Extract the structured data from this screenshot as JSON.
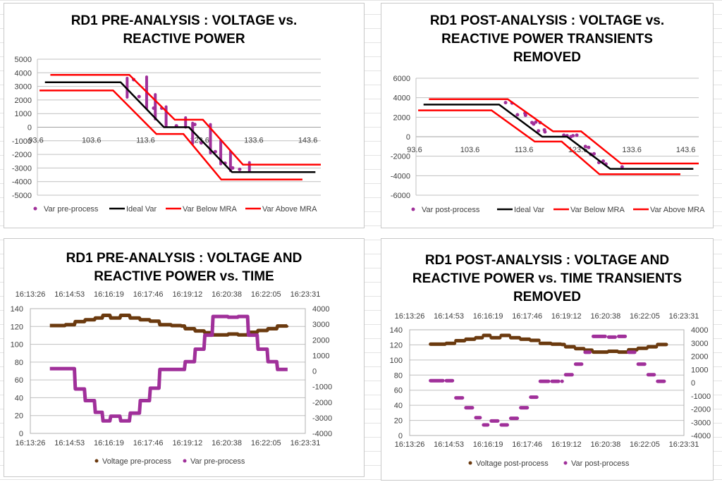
{
  "chart_data": [
    {
      "id": "tl",
      "type": "scatter",
      "title": [
        "RD1 PRE-ANALYSIS : VOLTAGE vs.",
        "REACTIVE POWER"
      ],
      "xlim": [
        93.6,
        146
      ],
      "ylim": [
        -5000,
        5000
      ],
      "xticks": [
        "93.6",
        "103.6",
        "113.6",
        "123.6",
        "133.6",
        "143.6"
      ],
      "xtick_values": [
        93.6,
        103.6,
        113.6,
        123.6,
        133.6,
        143.6
      ],
      "yticks": [
        5000,
        4000,
        3000,
        2000,
        1000,
        0,
        -1000,
        -2000,
        -3000,
        -4000,
        -5000
      ],
      "grid": true,
      "legend": "bottom",
      "series": [
        {
          "name": "Var pre-process",
          "kind": "points",
          "color": "#A0309A",
          "points": [
            [
              111.4,
              3500
            ],
            [
              112.4,
              2250
            ],
            [
              115.1,
              1400
            ],
            [
              116.6,
              1400
            ],
            [
              119.3,
              100
            ],
            [
              122.7,
              200
            ],
            [
              123.9,
              -1150
            ],
            [
              126.5,
              -1800
            ],
            [
              128.3,
              -2650
            ],
            [
              129.7,
              -3000
            ],
            [
              131,
              -3100
            ]
          ],
          "transients": [
            [
              110.2,
              2200,
              3600
            ],
            [
              113.8,
              1400,
              3700
            ],
            [
              115.4,
              600,
              2400
            ],
            [
              117.4,
              100,
              1500
            ],
            [
              121,
              0,
              700
            ],
            [
              122.3,
              -1200,
              300
            ],
            [
              125.6,
              -1900,
              200
            ],
            [
              127.5,
              -2700,
              -1000
            ],
            [
              129.3,
              -3200,
              -1800
            ],
            [
              132.8,
              -3200,
              -2600
            ]
          ]
        },
        {
          "name": "Ideal Var",
          "kind": "line",
          "color": "#000000",
          "points": [
            [
              95,
              3300
            ],
            [
              109,
              3300
            ],
            [
              117,
              0
            ],
            [
              121.6,
              0
            ],
            [
              129.6,
              -3300
            ],
            [
              145,
              -3300
            ]
          ]
        },
        {
          "name": "Var Below MRA",
          "kind": "line",
          "color": "#FF0000",
          "points": [
            [
              94,
              2700
            ],
            [
              107.6,
              2700
            ],
            [
              115.6,
              -500
            ],
            [
              120.6,
              -500
            ],
            [
              127.6,
              -3850
            ],
            [
              142.6,
              -3850
            ]
          ]
        },
        {
          "name": "Var Above MRA",
          "kind": "line",
          "color": "#FF0000",
          "points": [
            [
              96,
              3850
            ],
            [
              110.6,
              3850
            ],
            [
              119,
              550
            ],
            [
              124.2,
              550
            ],
            [
              131.6,
              -2750
            ],
            [
              146,
              -2750
            ]
          ]
        }
      ]
    },
    {
      "id": "tr",
      "type": "scatter",
      "title": [
        "RD1 POST-ANALYSIS : VOLTAGE vs.",
        "REACTIVE POWER TRANSIENTS",
        "REMOVED"
      ],
      "xlim": [
        93.6,
        146
      ],
      "ylim": [
        -6000,
        6000
      ],
      "xticks": [
        "93.6",
        "103.6",
        "113.6",
        "123.6",
        "133.6",
        "143.6"
      ],
      "xtick_values": [
        93.6,
        103.6,
        113.6,
        123.6,
        133.6,
        143.6
      ],
      "yticks": [
        6000,
        4000,
        2000,
        0,
        -2000,
        -4000,
        -6000
      ],
      "grid": true,
      "legend": "bottom",
      "series": [
        {
          "name": "Var post-process",
          "kind": "points",
          "color": "#A0309A",
          "points": [
            [
              110.2,
              3500
            ],
            [
              111.4,
              3450
            ],
            [
              112.4,
              2250
            ],
            [
              113.8,
              2400
            ],
            [
              113.9,
              2200
            ],
            [
              115.1,
              1450
            ],
            [
              115.4,
              1300
            ],
            [
              115.8,
              1500
            ],
            [
              116.3,
              600
            ],
            [
              116.6,
              1450
            ],
            [
              117.4,
              700
            ],
            [
              117.5,
              500
            ],
            [
              121,
              150
            ],
            [
              121.6,
              100
            ],
            [
              122.3,
              0
            ],
            [
              122.7,
              100
            ],
            [
              123.4,
              150
            ],
            [
              125,
              -1000
            ],
            [
              125.6,
              -1100
            ],
            [
              126,
              -1800
            ],
            [
              126.6,
              -1750
            ],
            [
              127.5,
              -2650
            ],
            [
              128.3,
              -2500
            ],
            [
              128.8,
              -2800
            ],
            [
              131.8,
              -3100
            ]
          ]
        },
        {
          "name": "Ideal Var",
          "kind": "line",
          "color": "#000000",
          "points": [
            [
              95,
              3300
            ],
            [
              109,
              3300
            ],
            [
              117,
              0
            ],
            [
              121.6,
              0
            ],
            [
              129.6,
              -3300
            ],
            [
              145,
              -3300
            ]
          ]
        },
        {
          "name": "Var Below MRA",
          "kind": "line",
          "color": "#FF0000",
          "points": [
            [
              94,
              2700
            ],
            [
              107.6,
              2700
            ],
            [
              115.6,
              -500
            ],
            [
              120.6,
              -500
            ],
            [
              127.6,
              -3850
            ],
            [
              142.6,
              -3850
            ]
          ]
        },
        {
          "name": "Var Above MRA",
          "kind": "line",
          "color": "#FF0000",
          "points": [
            [
              96,
              3850
            ],
            [
              110.6,
              3850
            ],
            [
              119,
              550
            ],
            [
              124.2,
              550
            ],
            [
              131.6,
              -2750
            ],
            [
              146,
              -2750
            ]
          ]
        }
      ]
    },
    {
      "id": "bl",
      "type": "line",
      "title": [
        "RD1 PRE-ANALYSIS : VOLTAGE AND",
        "REACTIVE POWER vs. TIME"
      ],
      "xticks": [
        "16:13:26",
        "16:14:53",
        "16:16:19",
        "16:17:46",
        "16:19:12",
        "16:20:38",
        "16:22:05",
        "16:23:31"
      ],
      "xlim_seconds": [
        0,
        605
      ],
      "ylim_left": [
        0,
        140
      ],
      "yticks_left": [
        140,
        120,
        100,
        80,
        60,
        40,
        20,
        0
      ],
      "ylim_right": [
        -4000,
        4000
      ],
      "yticks_right": [
        4000,
        3000,
        2000,
        1000,
        0,
        -1000,
        -2000,
        -3000,
        -4000
      ],
      "legend": "bottom",
      "step_style": "continuous",
      "t_seconds": [
        43,
        78,
        99,
        121,
        143,
        160,
        177,
        199,
        220,
        242,
        264,
        285,
        311,
        333,
        341,
        363,
        384,
        402,
        436,
        458,
        480,
        501,
        523,
        544,
        566
      ],
      "series": [
        {
          "name": "Voltage pre-process",
          "axis": "left",
          "color": "#6B3A0F",
          "values": [
            121,
            122,
            125.5,
            127.5,
            129.5,
            132.5,
            129.5,
            132.5,
            129.5,
            127.5,
            126,
            122,
            121,
            120.5,
            117.5,
            115,
            113,
            110.5,
            111.5,
            110.5,
            113.5,
            115.5,
            117.5,
            120.5,
            121.5
          ]
        },
        {
          "name": "Var pre-process",
          "axis": "right",
          "color": "#A0309A",
          "values": [
            150,
            150,
            -1150,
            -1900,
            -2650,
            -3200,
            -2900,
            -3200,
            -2700,
            -1900,
            -1100,
            100,
            100,
            100,
            600,
            1400,
            2300,
            3500,
            3450,
            3500,
            2300,
            1400,
            600,
            100,
            100
          ]
        }
      ]
    },
    {
      "id": "br",
      "type": "line",
      "title": [
        "RD1 POST-ANALYSIS : VOLTAGE AND",
        "REACTIVE POWER vs. TIME TRANSIENTS",
        "REMOVED"
      ],
      "xticks": [
        "16:13:26",
        "16:14:53",
        "16:16:19",
        "16:17:46",
        "16:19:12",
        "16:20:38",
        "16:22:05",
        "16:23:31"
      ],
      "xlim_seconds": [
        0,
        605
      ],
      "ylim_left": [
        0,
        140
      ],
      "yticks_left": [
        140,
        120,
        100,
        80,
        60,
        40,
        20,
        0
      ],
      "ylim_right": [
        -4000,
        4000
      ],
      "yticks_right": [
        4000,
        3000,
        2000,
        1000,
        0,
        -1000,
        -2000,
        -3000,
        -4000
      ],
      "legend": "bottom",
      "step_style": "segments",
      "t_seconds": [
        43,
        78,
        99,
        121,
        143,
        160,
        177,
        199,
        220,
        242,
        264,
        285,
        311,
        333,
        341,
        363,
        384,
        402,
        436,
        458,
        480,
        501,
        523,
        544,
        566
      ],
      "series": [
        {
          "name": "Voltage post-process",
          "axis": "left",
          "color": "#6B3A0F",
          "values": [
            121,
            122,
            125.5,
            127.5,
            129.5,
            132.5,
            129.5,
            132.5,
            129.5,
            127.5,
            126,
            122,
            121,
            120.5,
            117.5,
            115,
            113,
            110.5,
            111.5,
            110.5,
            113.5,
            115.5,
            117.5,
            120.5,
            121.5
          ]
        },
        {
          "name": "Var post-process",
          "axis": "right",
          "color": "#A0309A",
          "values": [
            150,
            150,
            -1150,
            -1900,
            -2650,
            -3200,
            -2900,
            -3200,
            -2700,
            -1900,
            -1100,
            100,
            100,
            100,
            600,
            1400,
            2300,
            3500,
            3450,
            3500,
            2300,
            1400,
            600,
            100,
            100
          ]
        }
      ]
    }
  ]
}
